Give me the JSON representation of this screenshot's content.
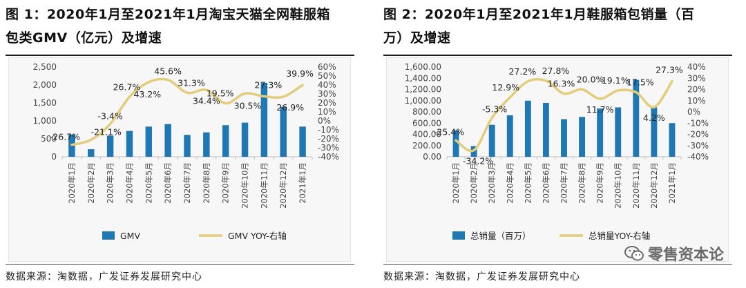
{
  "chart_data": [
    {
      "type": "bar",
      "title": "图 1：2020年1月至2021年1月淘宝天猫全网鞋服箱包类GMV（亿元）及增速",
      "title_line1": "图 1：2020年1月至2021年1月淘宝天猫全网鞋服箱",
      "title_line2": "包类GMV（亿元）及增速",
      "categories": [
        "2020年1月",
        "2020年2月",
        "2020年3月",
        "2020年4月",
        "2020年5月",
        "2020年6月",
        "2020年7月",
        "2020年8月",
        "2020年9月",
        "2020年10月",
        "2020年11月",
        "2020年12月",
        "2021年1月"
      ],
      "series": [
        {
          "name": "GMV",
          "axis": "left",
          "kind": "bar",
          "values": [
            620,
            210,
            590,
            720,
            840,
            910,
            610,
            680,
            880,
            950,
            2060,
            1390,
            840
          ]
        },
        {
          "name": "GMV YOY-右轴",
          "axis": "right",
          "kind": "line",
          "values": [
            -26.7,
            -21.1,
            -3.4,
            26.7,
            43.2,
            45.6,
            31.3,
            34.4,
            19.5,
            30.5,
            27.3,
            26.9,
            39.9
          ],
          "labels": [
            "-26.7%",
            "-21.1%",
            "-3.4%",
            "26.7%",
            "43.2%",
            "45.6%",
            "31.3%",
            "34.4%",
            "19.5%",
            "30.5%",
            "27.3%",
            "26.9%",
            "39.9%"
          ]
        }
      ],
      "ylim": [
        0,
        2500
      ],
      "yticks": [
        "0",
        "500",
        "1,000",
        "1,500",
        "2,000",
        "2,500"
      ],
      "y2lim": [
        -40,
        60
      ],
      "y2ticks": [
        "-40%",
        "-30%",
        "-20%",
        "-10%",
        "0%",
        "10%",
        "20%",
        "30%",
        "40%",
        "50%",
        "60%"
      ],
      "legend": [
        "GMV",
        "GMV YOY-右轴"
      ],
      "legend_position": "bottom",
      "source": "数据来源：淘数据，广发证券发展研究中心"
    },
    {
      "type": "bar",
      "title": "图 2：2020年1月至2021年1月鞋服箱包销量（百万）及增速",
      "title_line1": "图 2：2020年1月至2021年1月鞋服箱包销量（百",
      "title_line2": "万）及增速",
      "categories": [
        "2020年1月",
        "2020年2月",
        "2020年3月",
        "2020年4月",
        "2020年5月",
        "2020年6月",
        "2020年7月",
        "2020年8月",
        "2020年9月",
        "2020年10月",
        "2020年11月",
        "2020年12月",
        "2021年1月"
      ],
      "series": [
        {
          "name": "总销量（百万）",
          "axis": "left",
          "kind": "bar",
          "values": [
            470,
            190,
            570,
            740,
            1000,
            960,
            670,
            710,
            860,
            880,
            1370,
            880,
            600
          ]
        },
        {
          "name": "总销量YOY-右轴",
          "axis": "right",
          "kind": "line",
          "values": [
            -25.4,
            -34.2,
            -5.3,
            12.9,
            27.2,
            27.8,
            16.3,
            20.0,
            11.7,
            19.1,
            17.5,
            4.2,
            27.3
          ],
          "labels": [
            "-25.4%",
            "-34.2%",
            "-5.3%",
            "12.9%",
            "27.2%",
            "27.8%",
            "16.3%",
            "20.0%",
            "11.7%",
            "19.1%",
            "17.5%",
            "4.2%",
            "27.3%"
          ]
        }
      ],
      "ylim": [
        0,
        1600
      ],
      "yticks": [
        "0.00",
        "200.00",
        "400.00",
        "600.00",
        "800.00",
        "1,000.00",
        "1,200.00",
        "1,400.00",
        "1,600.00"
      ],
      "y2lim": [
        -40,
        40
      ],
      "y2ticks": [
        "-40%",
        "-30%",
        "-20%",
        "-10%",
        "0%",
        "10%",
        "20%",
        "30%",
        "40%"
      ],
      "legend": [
        "总销量（百万）",
        "总销量YOY-右轴"
      ],
      "legend_position": "bottom",
      "source": "数据来源：淘数据，广发证券发展研究中心"
    }
  ],
  "colors": {
    "bar": "#1f78b4",
    "line": "#e3cc7a",
    "axis_text": "#444444"
  },
  "watermark": {
    "text": "零售资本论",
    "icon": "wechat-icon"
  }
}
